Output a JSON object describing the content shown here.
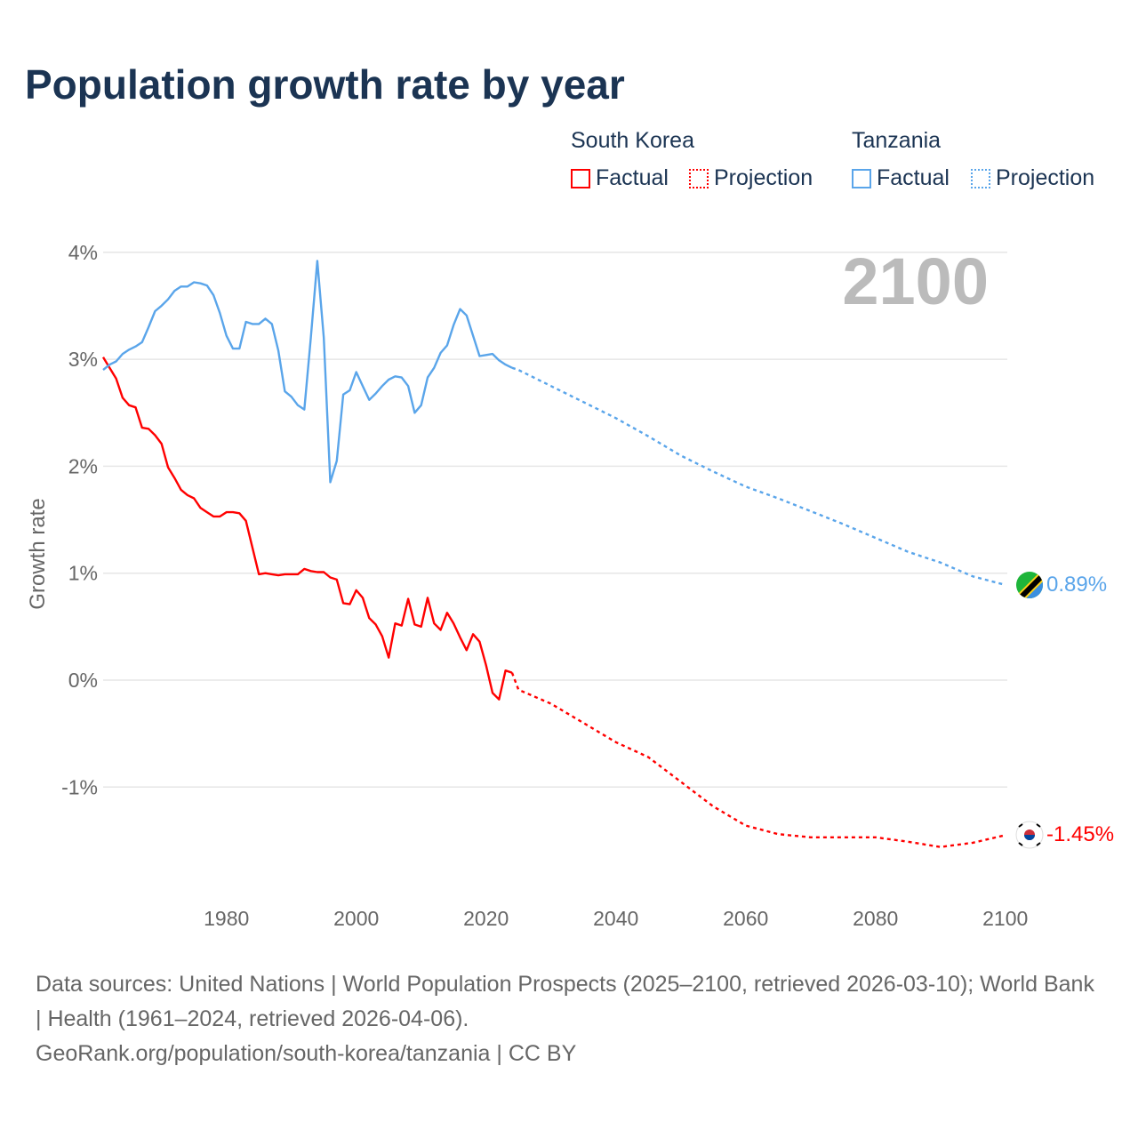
{
  "title": "Population growth rate by year",
  "legend": {
    "groups": [
      {
        "name": "South Korea",
        "factual": "Factual",
        "projection": "Projection",
        "color": "#ff0000"
      },
      {
        "name": "Tanzania",
        "factual": "Factual",
        "projection": "Projection",
        "color": "#5aa5ea"
      }
    ]
  },
  "year_label": "2100",
  "end_labels": {
    "tanzania": "0.89%",
    "south_korea": "-1.45%"
  },
  "footer": {
    "sources": "Data sources: United Nations | World Population Prospects (2025–2100, retrieved 2026-03-10); World Bank | Health (1961–2024, retrieved 2026-04-06).",
    "credit": "GeoRank.org/population/south-korea/tanzania | CC BY"
  },
  "chart_data": {
    "type": "line",
    "title": "Population growth rate by year",
    "xlabel": "",
    "ylabel": "Growth rate",
    "xlim": [
      1961,
      2100
    ],
    "ylim": [
      -2,
      4.1
    ],
    "xticks": [
      1980,
      2000,
      2020,
      2040,
      2060,
      2080,
      2100
    ],
    "yticks": [
      {
        "v": 4,
        "l": "4%"
      },
      {
        "v": 3,
        "l": "3%"
      },
      {
        "v": 2,
        "l": "2%"
      },
      {
        "v": 1,
        "l": "1%"
      },
      {
        "v": 0,
        "l": "0%"
      },
      {
        "v": -1,
        "l": "-1%"
      }
    ],
    "grid": true,
    "series": [
      {
        "name": "South Korea Factual",
        "color": "#ff0000",
        "dashed": false,
        "start": 1961,
        "values": [
          3.02,
          2.92,
          2.82,
          2.64,
          2.57,
          2.55,
          2.36,
          2.35,
          2.29,
          2.21,
          1.99,
          1.89,
          1.78,
          1.73,
          1.7,
          1.61,
          1.57,
          1.53,
          1.53,
          1.57,
          1.57,
          1.56,
          1.49,
          1.24,
          0.99,
          1.0,
          0.99,
          0.98,
          0.99,
          0.99,
          0.99,
          1.04,
          1.02,
          1.01,
          1.01,
          0.96,
          0.94,
          0.72,
          0.71,
          0.84,
          0.77,
          0.58,
          0.52,
          0.41,
          0.21,
          0.53,
          0.51,
          0.76,
          0.52,
          0.5,
          0.77,
          0.53,
          0.47,
          0.63,
          0.53,
          0.4,
          0.28,
          0.43,
          0.36,
          0.14,
          -0.12,
          -0.18,
          0.09,
          0.07
        ]
      },
      {
        "name": "South Korea Projection",
        "color": "#ff0000",
        "dashed": true,
        "x": [
          2024,
          2025,
          2030,
          2035,
          2040,
          2045,
          2050,
          2055,
          2060,
          2065,
          2070,
          2075,
          2080,
          2085,
          2090,
          2095,
          2100
        ],
        "values": [
          0.07,
          -0.09,
          -0.22,
          -0.4,
          -0.58,
          -0.72,
          -0.95,
          -1.18,
          -1.36,
          -1.44,
          -1.47,
          -1.47,
          -1.47,
          -1.51,
          -1.56,
          -1.52,
          -1.45
        ]
      },
      {
        "name": "Tanzania Factual",
        "color": "#5aa5ea",
        "dashed": false,
        "start": 1961,
        "values": [
          2.9,
          2.95,
          2.98,
          3.05,
          3.09,
          3.12,
          3.16,
          3.3,
          3.45,
          3.5,
          3.56,
          3.64,
          3.68,
          3.68,
          3.72,
          3.71,
          3.69,
          3.6,
          3.43,
          3.22,
          3.1,
          3.1,
          3.35,
          3.33,
          3.33,
          3.38,
          3.33,
          3.08,
          2.7,
          2.65,
          2.57,
          2.53,
          3.2,
          3.92,
          3.2,
          1.85,
          2.05,
          2.67,
          2.71,
          2.88,
          2.75,
          2.62,
          2.68,
          2.75,
          2.81,
          2.84,
          2.83,
          2.75,
          2.5,
          2.57,
          2.83,
          2.92,
          3.06,
          3.13,
          3.32,
          3.47,
          3.41,
          3.22,
          3.03,
          3.04,
          3.05,
          2.99,
          2.95,
          2.92
        ]
      },
      {
        "name": "Tanzania Projection",
        "color": "#5aa5ea",
        "dashed": true,
        "x": [
          2024,
          2025,
          2030,
          2035,
          2040,
          2045,
          2050,
          2055,
          2060,
          2065,
          2070,
          2075,
          2080,
          2085,
          2090,
          2095,
          2100
        ],
        "values": [
          2.92,
          2.9,
          2.75,
          2.6,
          2.45,
          2.28,
          2.1,
          1.95,
          1.81,
          1.7,
          1.58,
          1.46,
          1.33,
          1.2,
          1.1,
          0.97,
          0.89
        ]
      }
    ]
  }
}
